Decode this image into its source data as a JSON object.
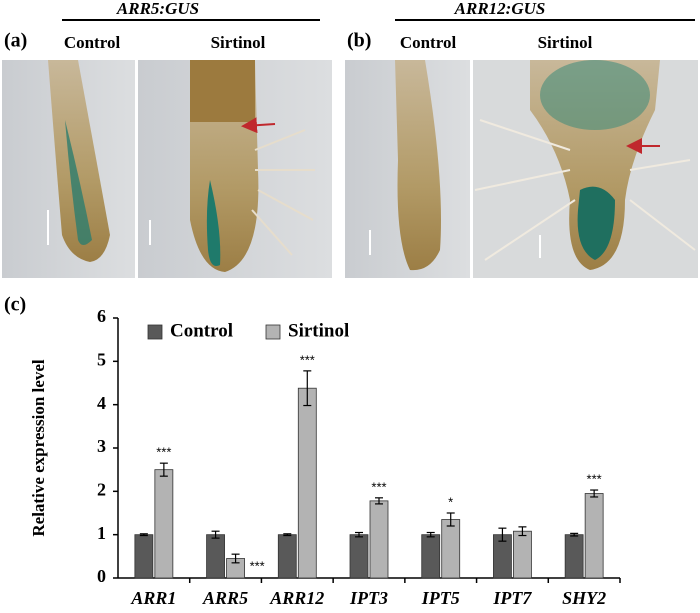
{
  "panels": [
    {
      "label": "(a)",
      "title": "ARR5:GUS",
      "columns": [
        "Control",
        "Sirtinol"
      ]
    },
    {
      "label": "(b)",
      "title": "ARR12:GUS",
      "columns": [
        "Control",
        "Sirtinol"
      ]
    }
  ],
  "chart_label": "(c)",
  "chart_data": {
    "type": "bar",
    "y_label": "Relative expression level",
    "categories": [
      "ARR1",
      "ARR5",
      "ARR12",
      "IPT3",
      "IPT5",
      "IPT7",
      "SHY2"
    ],
    "series": [
      {
        "name": "Control",
        "color": "#595959",
        "values": [
          1,
          1,
          1,
          1,
          1,
          1,
          1
        ],
        "errors": [
          0.02,
          0.08,
          0.02,
          0.05,
          0.05,
          0.15,
          0.03
        ]
      },
      {
        "name": "Sirtinol",
        "color": "#b3b3b3",
        "values": [
          2.5,
          0.45,
          4.38,
          1.78,
          1.35,
          1.08,
          1.95
        ],
        "errors": [
          0.15,
          0.1,
          0.4,
          0.07,
          0.15,
          0.1,
          0.08
        ],
        "significance": [
          "***",
          "***",
          "***",
          "***",
          "*",
          null,
          "***"
        ]
      }
    ],
    "ylim": [
      0,
      6
    ],
    "yticks": [
      0,
      1,
      2,
      3,
      4,
      5,
      6
    ],
    "legend": "top-left"
  }
}
